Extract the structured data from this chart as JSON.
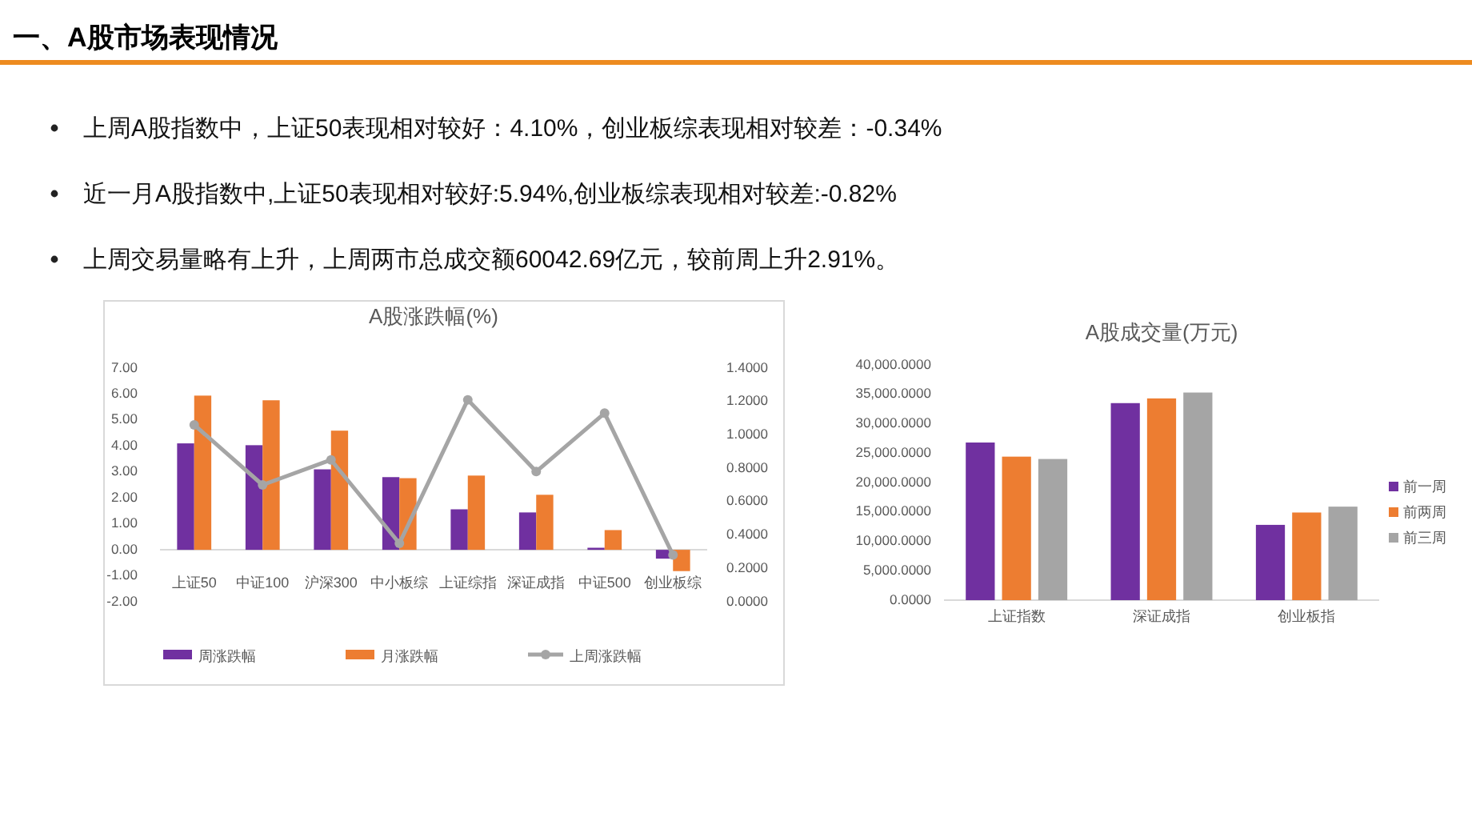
{
  "chart_data": [
    {
      "type": "other",
      "title": "一、A股市场表现情况",
      "annotations": [
        "上周A股指数中，上证50表现相对较好：4.10%，创业板综表现相对较差：-0.34%",
        "近一月A股指数中,上证50表现相对较好:5.94%,创业板综表现相对较差:-0.82%",
        "上周交易量略有上升，上周两市总成交额60042.69亿元，较前周上升2.91%。"
      ]
    },
    {
      "type": "bar",
      "title": "A股涨跌幅(%)",
      "legend": "bottom",
      "categories": [
        "上证50",
        "中证100",
        "沪深300",
        "中小板综",
        "上证综指",
        "深证成指",
        "中证500",
        "创业板综"
      ],
      "series": [
        {
          "name": "周涨跌幅",
          "color": "#7030a0",
          "values": [
            4.1,
            4.03,
            3.1,
            2.8,
            1.56,
            1.44,
            0.08,
            -0.34
          ]
        },
        {
          "name": "月涨跌幅",
          "color": "#ed7d31",
          "values": [
            5.94,
            5.76,
            4.59,
            2.76,
            2.86,
            2.12,
            0.76,
            -0.82
          ]
        },
        {
          "name": "上周涨跌幅",
          "type": "line",
          "axis": "y2",
          "marker": "circle",
          "color": "#a5a5a5",
          "values": [
            1.06,
            0.7,
            0.85,
            0.35,
            1.21,
            0.78,
            1.13,
            0.28
          ]
        }
      ],
      "ylim": [
        -2,
        7
      ],
      "yticks": [
        {
          "value": -2,
          "label": "-2.00"
        },
        {
          "value": -1,
          "label": "-1.00"
        },
        {
          "value": 0,
          "label": "0.00"
        },
        {
          "value": 1,
          "label": "1.00"
        },
        {
          "value": 2,
          "label": "2.00"
        },
        {
          "value": 3,
          "label": "3.00"
        },
        {
          "value": 4,
          "label": "4.00"
        },
        {
          "value": 5,
          "label": "5.00"
        },
        {
          "value": 6,
          "label": "6.00"
        },
        {
          "value": 7,
          "label": "7.00"
        }
      ],
      "y2lim": [
        0,
        1.4
      ],
      "y2ticks": [
        {
          "value": 0,
          "label": "0.0000"
        },
        {
          "value": 0.2,
          "label": "0.2000"
        },
        {
          "value": 0.4,
          "label": "0.4000"
        },
        {
          "value": 0.6,
          "label": "0.6000"
        },
        {
          "value": 0.8,
          "label": "0.8000"
        },
        {
          "value": 1.0,
          "label": "1.0000"
        },
        {
          "value": 1.2,
          "label": "1.2000"
        },
        {
          "value": 1.4,
          "label": "1.4000"
        }
      ]
    },
    {
      "type": "bar",
      "title": "A股成交量(万元)",
      "legend": "right",
      "categories": [
        "上证指数",
        "深证成指",
        "创业板指"
      ],
      "series": [
        {
          "name": "前一周",
          "color": "#7030a0",
          "values": [
            26800,
            33500,
            12800
          ]
        },
        {
          "name": "前两周",
          "color": "#ed7d31",
          "values": [
            24400,
            34300,
            14900
          ]
        },
        {
          "name": "前三周",
          "color": "#a5a5a5",
          "values": [
            24000,
            35300,
            15900
          ]
        }
      ],
      "ylim": [
        0,
        40000
      ],
      "yticks": [
        {
          "value": 0,
          "label": "0.0000"
        },
        {
          "value": 5000,
          "label": "5,000.0000"
        },
        {
          "value": 10000,
          "label": "10,000.0000"
        },
        {
          "value": 15000,
          "label": "15,000.0000"
        },
        {
          "value": 20000,
          "label": "20,000.0000"
        },
        {
          "value": 25000,
          "label": "25,000.0000"
        },
        {
          "value": 30000,
          "label": "30,000.0000"
        },
        {
          "value": 35000,
          "label": "35,000.0000"
        },
        {
          "value": 40000,
          "label": "40,000.0000"
        }
      ]
    }
  ]
}
